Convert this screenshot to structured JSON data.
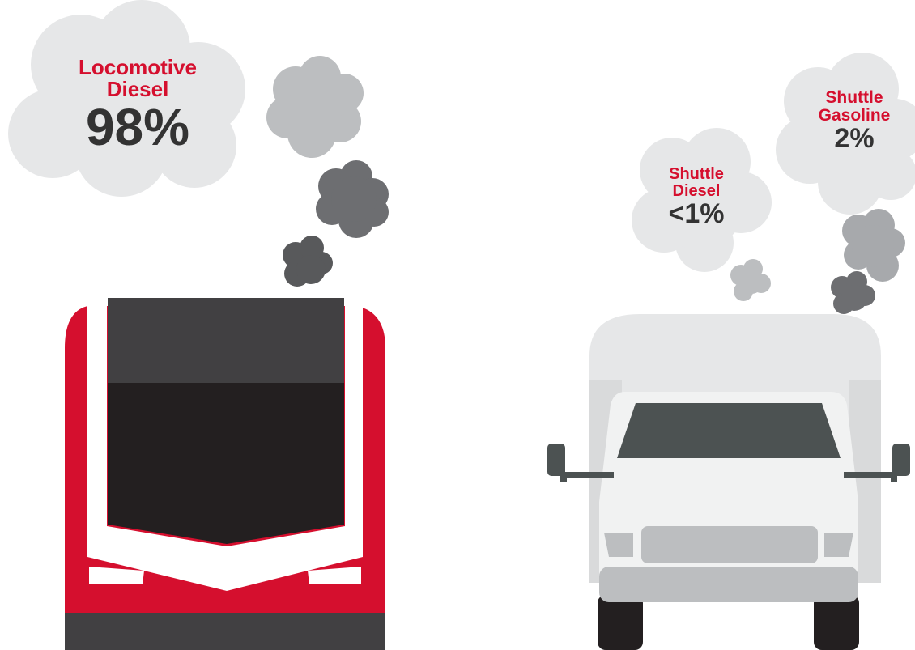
{
  "clouds": [
    {
      "name": "Locomotive",
      "fuel": "Diesel",
      "percent": "98%"
    },
    {
      "name": "Shuttle",
      "fuel": "Diesel",
      "percent": "<1%"
    },
    {
      "name": "Shuttle",
      "fuel": "Gasoline",
      "percent": "2%"
    }
  ],
  "colors": {
    "accent": "#d50f2e",
    "text": "#333333",
    "cloud": "#e6e7e8",
    "smoke_light": "#bcbec0",
    "smoke_mid": "#939598",
    "smoke_dark": "#58595b"
  }
}
